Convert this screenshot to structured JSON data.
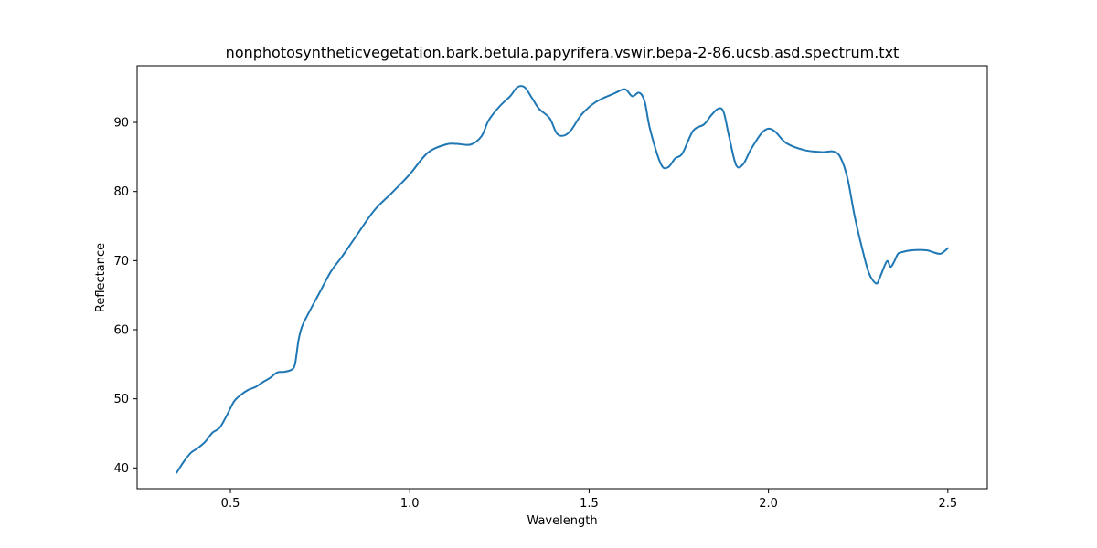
{
  "chart_data": {
    "type": "line",
    "title": "nonphotosyntheticvegetation.bark.betula.papyrifera.vswir.bepa-2-86.ucsb.asd.spectrum.txt",
    "xlabel": "Wavelength",
    "ylabel": "Reflectance",
    "xlim": [
      0.24,
      2.61
    ],
    "ylim": [
      37.0,
      98.2
    ],
    "xticks": [
      0.5,
      1.0,
      1.5,
      2.0,
      2.5
    ],
    "xtick_labels": [
      "0.5",
      "1.0",
      "1.5",
      "2.0",
      "2.5"
    ],
    "yticks": [
      40,
      50,
      60,
      70,
      80,
      90
    ],
    "ytick_labels": [
      "40",
      "50",
      "60",
      "70",
      "80",
      "90"
    ],
    "grid": false,
    "line_color": "#1f77b4",
    "series": [
      {
        "x": [
          0.35,
          0.37,
          0.39,
          0.41,
          0.43,
          0.45,
          0.47,
          0.49,
          0.51,
          0.53,
          0.55,
          0.57,
          0.59,
          0.61,
          0.63,
          0.65,
          0.67,
          0.68,
          0.69,
          0.7,
          0.72,
          0.75,
          0.78,
          0.81,
          0.85,
          0.9,
          0.95,
          1.0,
          1.05,
          1.1,
          1.13,
          1.17,
          1.2,
          1.22,
          1.25,
          1.28,
          1.3,
          1.32,
          1.34,
          1.36,
          1.39,
          1.41,
          1.43,
          1.45,
          1.48,
          1.52,
          1.57,
          1.6,
          1.62,
          1.64,
          1.655,
          1.67,
          1.7,
          1.72,
          1.74,
          1.76,
          1.79,
          1.82,
          1.84,
          1.86,
          1.875,
          1.89,
          1.91,
          1.93,
          1.95,
          1.98,
          2.0,
          2.02,
          2.05,
          2.1,
          2.15,
          2.18,
          2.2,
          2.22,
          2.24,
          2.26,
          2.28,
          2.3,
          2.31,
          2.33,
          2.34,
          2.35,
          2.36,
          2.37,
          2.4,
          2.44,
          2.46,
          2.48,
          2.5
        ],
        "y": [
          39.3,
          40.9,
          42.2,
          42.9,
          43.8,
          45.1,
          45.8,
          47.6,
          49.6,
          50.6,
          51.3,
          51.7,
          52.4,
          53.0,
          53.8,
          53.9,
          54.2,
          55.0,
          58.5,
          60.5,
          62.6,
          65.5,
          68.4,
          70.5,
          73.5,
          77.2,
          79.8,
          82.5,
          85.6,
          86.8,
          86.9,
          86.8,
          88.0,
          90.3,
          92.3,
          93.8,
          95.1,
          95.1,
          93.6,
          92.0,
          90.6,
          88.4,
          88.1,
          88.9,
          91.2,
          93.0,
          94.2,
          94.8,
          93.8,
          94.3,
          93.0,
          89.0,
          84.0,
          83.5,
          84.8,
          85.5,
          88.8,
          89.7,
          91.0,
          92.0,
          91.5,
          88.0,
          83.8,
          84.0,
          86.0,
          88.4,
          89.1,
          88.6,
          87.0,
          86.0,
          85.7,
          85.8,
          85.0,
          82.0,
          76.5,
          72.0,
          68.2,
          66.7,
          67.5,
          69.9,
          69.1,
          69.8,
          70.9,
          71.2,
          71.5,
          71.5,
          71.2,
          71.0,
          71.8
        ]
      }
    ]
  }
}
